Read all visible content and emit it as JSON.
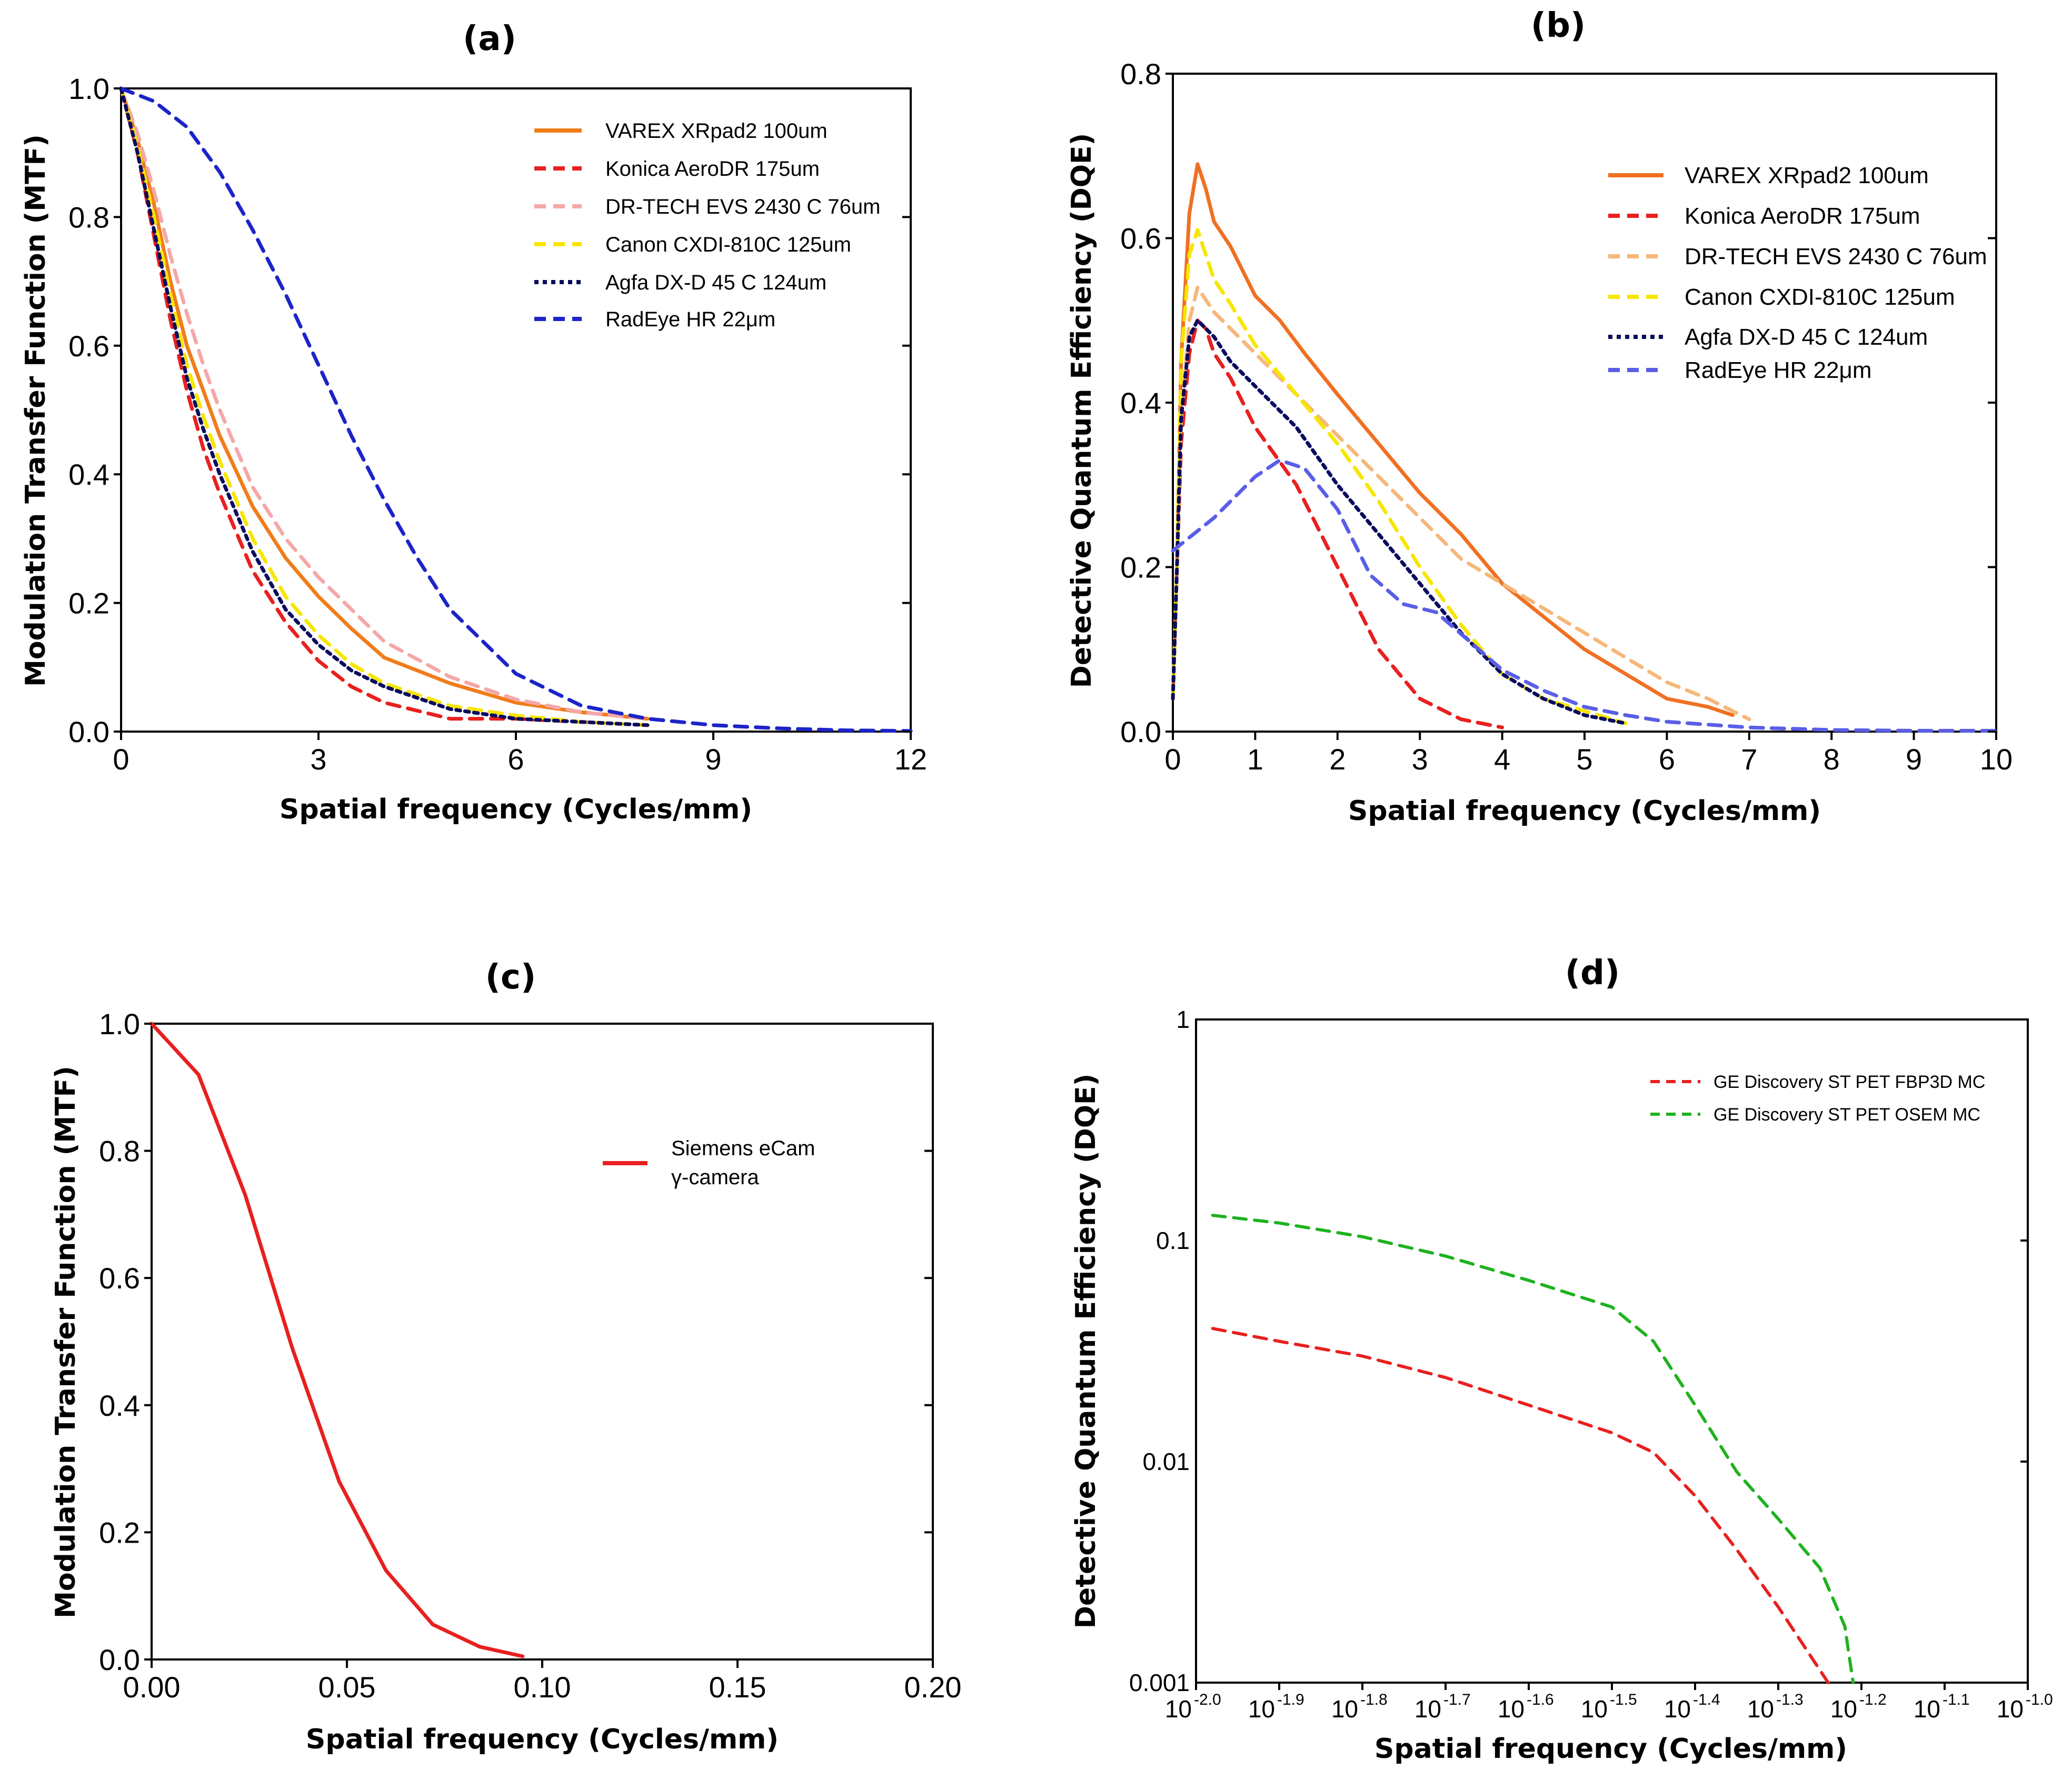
{
  "chart_data": [
    {
      "id": "a",
      "type": "line",
      "title": "(a)",
      "xlabel": "Spatial frequency (Cycles/mm)",
      "ylabel": "Modulation Transfer Function (MTF)",
      "xlim": [
        0,
        12
      ],
      "ylim": [
        0,
        1.0
      ],
      "xticks": [
        "0",
        "3",
        "6",
        "9",
        "12"
      ],
      "yticks": [
        "0.0",
        "0.2",
        "0.4",
        "0.6",
        "0.8",
        "1.0"
      ],
      "legend_position": "top-right",
      "series": [
        {
          "name": "VAREX XRpad2 100um",
          "color": "#f07d1a",
          "dash": "solid",
          "x": [
            0,
            0.25,
            0.5,
            0.75,
            1,
            1.25,
            1.5,
            2,
            2.5,
            3,
            3.5,
            4,
            5,
            6,
            7,
            8
          ],
          "y": [
            1.0,
            0.92,
            0.82,
            0.7,
            0.6,
            0.53,
            0.46,
            0.35,
            0.27,
            0.21,
            0.16,
            0.115,
            0.075,
            0.045,
            0.03,
            0.02
          ]
        },
        {
          "name": "Konica AeroDR 175um",
          "color": "#e8201f",
          "dash": "dash",
          "x": [
            0,
            0.25,
            0.5,
            0.75,
            1,
            1.25,
            1.5,
            2,
            2.5,
            3,
            3.5,
            4,
            5,
            6,
            7,
            8
          ],
          "y": [
            1.0,
            0.9,
            0.77,
            0.64,
            0.53,
            0.44,
            0.37,
            0.25,
            0.17,
            0.11,
            0.07,
            0.045,
            0.02,
            0.02,
            0.015,
            0.01
          ]
        },
        {
          "name": "DR-TECH EVS 2430 C 76um",
          "color": "#f4a8a8",
          "dash": "dash",
          "x": [
            0,
            0.25,
            0.5,
            0.75,
            1,
            1.25,
            1.5,
            2,
            2.5,
            3,
            3.5,
            4,
            5,
            6,
            7,
            8
          ],
          "y": [
            1.0,
            0.93,
            0.84,
            0.74,
            0.65,
            0.57,
            0.5,
            0.38,
            0.3,
            0.24,
            0.19,
            0.14,
            0.085,
            0.05,
            0.03,
            0.02
          ]
        },
        {
          "name": "Canon CXDI-810C 125um",
          "color": "#f7e600",
          "dash": "dash",
          "x": [
            0,
            0.25,
            0.5,
            0.75,
            1,
            1.25,
            1.5,
            2,
            2.5,
            3,
            3.5,
            4,
            5,
            6,
            7,
            8
          ],
          "y": [
            1.0,
            0.91,
            0.8,
            0.68,
            0.57,
            0.49,
            0.42,
            0.3,
            0.21,
            0.15,
            0.105,
            0.075,
            0.04,
            0.025,
            0.015,
            0.01
          ]
        },
        {
          "name": "Agfa DX-D 45 C 124um",
          "color": "#0a0a5e",
          "dash": "dot",
          "x": [
            0,
            0.25,
            0.5,
            0.75,
            1,
            1.25,
            1.5,
            2,
            2.5,
            3,
            3.5,
            4,
            5,
            6,
            7,
            8
          ],
          "y": [
            1.0,
            0.9,
            0.78,
            0.66,
            0.55,
            0.47,
            0.4,
            0.28,
            0.19,
            0.135,
            0.095,
            0.07,
            0.035,
            0.02,
            0.015,
            0.01
          ]
        },
        {
          "name": "RadEye HR 22μm",
          "color": "#1c24c8",
          "dash": "dash",
          "x": [
            0,
            0.5,
            1,
            1.5,
            2,
            2.5,
            3,
            3.5,
            4,
            4.5,
            5,
            6,
            7,
            8,
            9,
            10,
            11,
            12
          ],
          "y": [
            1.0,
            0.98,
            0.94,
            0.87,
            0.78,
            0.68,
            0.57,
            0.46,
            0.36,
            0.27,
            0.19,
            0.09,
            0.04,
            0.02,
            0.01,
            0.005,
            0.002,
            0.001
          ]
        }
      ]
    },
    {
      "id": "b",
      "type": "line",
      "title": "(b)",
      "xlabel": "Spatial frequency (Cycles/mm)",
      "ylabel": "Detective Quantum Efficiency (DQE)",
      "xlim": [
        0,
        10
      ],
      "ylim": [
        0,
        0.8
      ],
      "xticks": [
        "0",
        "1",
        "2",
        "3",
        "4",
        "5",
        "6",
        "7",
        "8",
        "9",
        "10"
      ],
      "yticks": [
        "0.0",
        "0.2",
        "0.4",
        "0.6",
        "0.8"
      ],
      "legend_position": "top-right",
      "series": [
        {
          "name": "VAREX XRpad2 100um",
          "color": "#f07022",
          "dash": "solid",
          "x": [
            0,
            0.05,
            0.1,
            0.2,
            0.3,
            0.4,
            0.5,
            0.7,
            1,
            1.3,
            1.6,
            2,
            2.5,
            3,
            3.5,
            4,
            4.5,
            5,
            5.5,
            6,
            6.5,
            6.8
          ],
          "y": [
            0.04,
            0.2,
            0.45,
            0.63,
            0.69,
            0.66,
            0.62,
            0.59,
            0.53,
            0.5,
            0.46,
            0.41,
            0.35,
            0.29,
            0.24,
            0.18,
            0.14,
            0.1,
            0.07,
            0.04,
            0.03,
            0.02
          ]
        },
        {
          "name": "Konica AeroDR 175um",
          "color": "#e8201f",
          "dash": "dash",
          "x": [
            0,
            0.05,
            0.1,
            0.2,
            0.3,
            0.4,
            0.5,
            0.7,
            1,
            1.5,
            2,
            2.5,
            3,
            3.5,
            4
          ],
          "y": [
            0.04,
            0.2,
            0.35,
            0.46,
            0.5,
            0.49,
            0.46,
            0.43,
            0.37,
            0.3,
            0.2,
            0.1,
            0.04,
            0.015,
            0.005
          ]
        },
        {
          "name": "DR-TECH EVS 2430 C 76um",
          "color": "#f5b87a",
          "dash": "dash",
          "x": [
            0,
            0.05,
            0.1,
            0.2,
            0.3,
            0.5,
            0.7,
            1,
            1.5,
            2,
            2.5,
            3,
            3.5,
            4,
            4.5,
            5,
            5.5,
            6,
            6.5,
            7
          ],
          "y": [
            0.04,
            0.2,
            0.38,
            0.5,
            0.54,
            0.51,
            0.49,
            0.46,
            0.41,
            0.36,
            0.31,
            0.26,
            0.21,
            0.18,
            0.15,
            0.12,
            0.09,
            0.06,
            0.04,
            0.015
          ]
        },
        {
          "name": "Canon CXDI-810C 125um",
          "color": "#f7e600",
          "dash": "dash",
          "x": [
            0,
            0.05,
            0.1,
            0.2,
            0.3,
            0.5,
            0.7,
            1,
            1.5,
            2,
            2.5,
            3,
            3.5,
            4,
            4.5,
            5,
            5.5
          ],
          "y": [
            0.04,
            0.2,
            0.45,
            0.58,
            0.61,
            0.55,
            0.52,
            0.47,
            0.41,
            0.35,
            0.28,
            0.2,
            0.13,
            0.07,
            0.04,
            0.025,
            0.01
          ]
        },
        {
          "name": "Agfa DX-D 45 C 124um",
          "color": "#0a0a5e",
          "dash": "dot",
          "x": [
            0,
            0.05,
            0.1,
            0.2,
            0.3,
            0.4,
            0.5,
            0.7,
            1,
            1.5,
            2,
            2.5,
            3,
            3.5,
            4,
            4.5,
            5,
            5.5
          ],
          "y": [
            0.04,
            0.2,
            0.38,
            0.48,
            0.5,
            0.49,
            0.48,
            0.45,
            0.42,
            0.37,
            0.3,
            0.24,
            0.18,
            0.12,
            0.07,
            0.04,
            0.02,
            0.01
          ]
        },
        {
          "name": "RadEye HR 22μm",
          "color": "#5a5ee6",
          "dash": "dash",
          "x": [
            0,
            0.5,
            1,
            1.3,
            1.6,
            2,
            2.4,
            2.8,
            3.2,
            3.6,
            4,
            4.5,
            5,
            5.5,
            6,
            7,
            8,
            9,
            10
          ],
          "y": [
            0.22,
            0.26,
            0.31,
            0.33,
            0.32,
            0.27,
            0.19,
            0.155,
            0.145,
            0.11,
            0.075,
            0.05,
            0.03,
            0.02,
            0.012,
            0.005,
            0.002,
            0.001,
            0.001
          ]
        }
      ]
    },
    {
      "id": "c",
      "type": "line",
      "title": "(c)",
      "xlabel": "Spatial frequency (Cycles/mm)",
      "ylabel": "Modulation Transfer Function (MTF)",
      "xlim": [
        0,
        0.2
      ],
      "ylim": [
        0,
        1.0
      ],
      "xticks": [
        "0.00",
        "0.05",
        "0.10",
        "0.15",
        "0.20"
      ],
      "yticks": [
        "0.0",
        "0.2",
        "0.4",
        "0.6",
        "0.8",
        "1.0"
      ],
      "legend_position": "top-right",
      "series": [
        {
          "name": "Siemens eCam",
          "name_line2": "γ-camera",
          "color": "#e8201f",
          "dash": "solid",
          "x": [
            0,
            0.012,
            0.024,
            0.036,
            0.048,
            0.06,
            0.072,
            0.084,
            0.095
          ],
          "y": [
            1.0,
            0.92,
            0.73,
            0.49,
            0.28,
            0.14,
            0.055,
            0.02,
            0.005
          ]
        }
      ]
    },
    {
      "id": "d",
      "type": "line",
      "title": "(d)",
      "xlabel": "Spatial frequency (Cycles/mm)",
      "ylabel": "Detective Quantum Efficiency (DQE)",
      "xscale": "log",
      "yscale": "log",
      "xlim_exp": [
        -2.0,
        -1.0
      ],
      "ylim": [
        0.001,
        1
      ],
      "xtick_base": "10",
      "xtick_exponents": [
        "-2.0",
        "-1.9",
        "-1.8",
        "-1.7",
        "-1.6",
        "-1.5",
        "-1.4",
        "-1.3",
        "-1.2",
        "-1.1",
        "-1.0"
      ],
      "yticks": [
        "0.001",
        "0.01",
        "0.1",
        "1"
      ],
      "legend_position": "top-right",
      "series": [
        {
          "name": "GE Discovery ST PET FBP3D MC",
          "color": "#e8201f",
          "dash": "dash",
          "x_exp": [
            -1.98,
            -1.9,
            -1.8,
            -1.7,
            -1.6,
            -1.5,
            -1.45,
            -1.4,
            -1.35,
            -1.3,
            -1.26,
            -1.24
          ],
          "y": [
            0.04,
            0.035,
            0.03,
            0.024,
            0.018,
            0.0135,
            0.011,
            0.007,
            0.004,
            0.0022,
            0.0013,
            0.001
          ]
        },
        {
          "name": "GE Discovery ST PET OSEM MC",
          "color": "#1fb21f",
          "dash": "dash",
          "x_exp": [
            -1.98,
            -1.9,
            -1.8,
            -1.7,
            -1.6,
            -1.5,
            -1.45,
            -1.4,
            -1.35,
            -1.3,
            -1.25,
            -1.22,
            -1.21
          ],
          "y": [
            0.13,
            0.12,
            0.104,
            0.085,
            0.066,
            0.05,
            0.035,
            0.018,
            0.009,
            0.0055,
            0.0033,
            0.0018,
            0.001
          ]
        }
      ]
    }
  ]
}
